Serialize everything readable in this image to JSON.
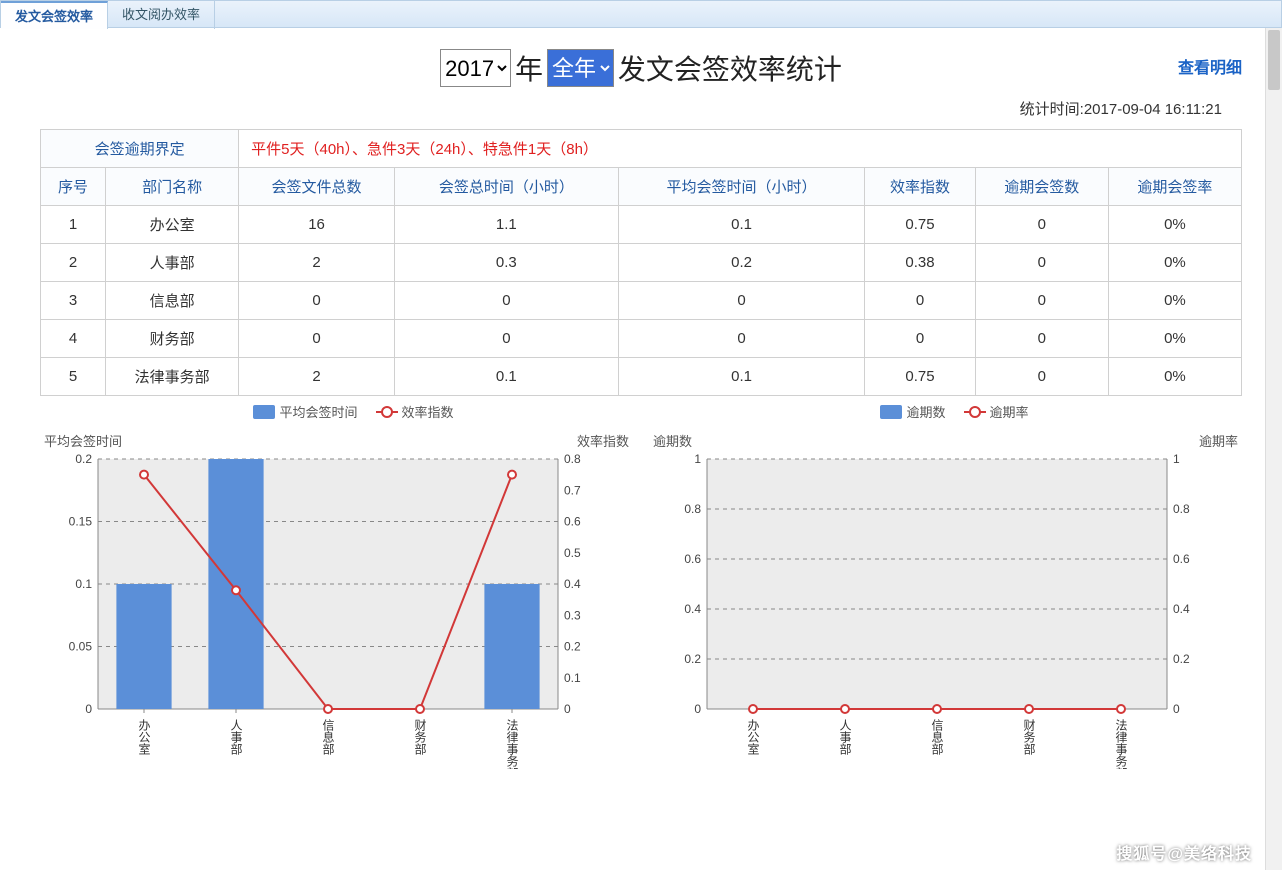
{
  "tabs": {
    "active": "发文会签效率",
    "inactive": "收文阅办效率"
  },
  "title": {
    "year_options": [
      "2017"
    ],
    "year_selected": "2017",
    "year_suffix": "年",
    "period_options": [
      "全年"
    ],
    "period_selected": "全年",
    "suffix": "发文会签效率统计",
    "view_detail": "查看明细"
  },
  "stats_time_label": "统计时间:2017-09-04 16:11:21",
  "definition": {
    "label": "会签逾期界定",
    "value": "平件5天（40h）、急件3天（24h）、特急件1天（8h）"
  },
  "table": {
    "columns": [
      "序号",
      "部门名称",
      "会签文件总数",
      "会签总时间（小时）",
      "平均会签时间（小时）",
      "效率指数",
      "逾期会签数",
      "逾期会签率"
    ],
    "rows": [
      [
        "1",
        "办公室",
        "16",
        "1.1",
        "0.1",
        "0.75",
        "0",
        "0%"
      ],
      [
        "2",
        "人事部",
        "2",
        "0.3",
        "0.2",
        "0.38",
        "0",
        "0%"
      ],
      [
        "3",
        "信息部",
        "0",
        "0",
        "0",
        "0",
        "0",
        "0%"
      ],
      [
        "4",
        "财务部",
        "0",
        "0",
        "0",
        "0",
        "0",
        "0%"
      ],
      [
        "5",
        "法律事务部",
        "2",
        "0.1",
        "0.1",
        "0.75",
        "0",
        "0%"
      ]
    ]
  },
  "legend": {
    "left": {
      "bar": "平均会签时间",
      "line": "效率指数"
    },
    "right": {
      "bar": "逾期数",
      "line": "逾期率"
    }
  },
  "chart_left": {
    "type": "bar+line",
    "title_left": "平均会签时间",
    "title_right": "效率指数",
    "categories": [
      "办公室",
      "人事部",
      "信息部",
      "财务部",
      "法律事务部"
    ],
    "bar_values": [
      0.1,
      0.2,
      0.0,
      0.0,
      0.1
    ],
    "line_values": [
      0.75,
      0.38,
      0.0,
      0.0,
      0.75
    ],
    "y_left": {
      "min": 0,
      "max": 0.2,
      "step": 0.05,
      "ticks": [
        "0",
        "0.05",
        "0.1",
        "0.15",
        "0.2"
      ]
    },
    "y_right": {
      "min": 0,
      "max": 0.8,
      "step": 0.1,
      "ticks": [
        "0",
        "0.1",
        "0.2",
        "0.3",
        "0.4",
        "0.5",
        "0.6",
        "0.7",
        "0.8"
      ]
    },
    "bar_color": "#5b8fd8",
    "line_color": "#d23838",
    "plot_bg": "#ececec",
    "grid_color": "#888888"
  },
  "chart_right": {
    "type": "bar+line",
    "title_left": "逾期数",
    "title_right": "逾期率",
    "categories": [
      "办公室",
      "人事部",
      "信息部",
      "财务部",
      "法律事务部"
    ],
    "bar_values": [
      0,
      0,
      0,
      0,
      0
    ],
    "line_values": [
      0,
      0,
      0,
      0,
      0
    ],
    "y_left": {
      "min": 0,
      "max": 1,
      "step": 0.2,
      "ticks": [
        "0",
        "0.2",
        "0.4",
        "0.6",
        "0.8",
        "1"
      ]
    },
    "y_right": {
      "min": 0,
      "max": 1,
      "step": 0.2,
      "ticks": [
        "0",
        "0.2",
        "0.4",
        "0.6",
        "0.8",
        "1"
      ]
    },
    "bar_color": "#5b8fd8",
    "line_color": "#d23838",
    "plot_bg": "#ececec",
    "grid_color": "#888888"
  },
  "watermark": "搜狐号@美络科技"
}
